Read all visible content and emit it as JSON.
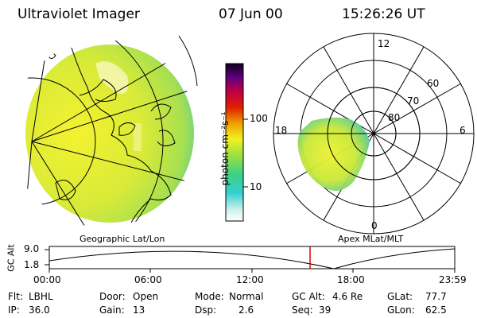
{
  "header": {
    "title": "Ultraviolet Imager",
    "date": "07 Jun 00",
    "time": "15:26:26 UT"
  },
  "colorbar": {
    "unit_label": "photon cm⁻²s⁻¹",
    "ticks": [
      "100",
      "10"
    ]
  },
  "polar": {
    "mlt_labels": [
      "12",
      "18",
      "6",
      "0"
    ],
    "lat_labels": [
      "60",
      "70",
      "80"
    ]
  },
  "panels": {
    "geo_label": "Geographic Lat/Lon",
    "apex_label": "Apex MLat/MLT"
  },
  "gc_alt_plot": {
    "axis_label": "GC Alt",
    "y_ticks": [
      "9.0",
      "1.8"
    ],
    "x_ticks": [
      "00:00",
      "06:00",
      "12:00",
      "18:00",
      "23:59"
    ],
    "marker_time": "15:26"
  },
  "status": {
    "flt_label": "Flt:",
    "flt_value": "LBHL",
    "ip_label": "IP:",
    "ip_value": "36.0",
    "door_label": "Door:",
    "door_value": "Open",
    "gain_label": "Gain:",
    "gain_value": "13",
    "mode_label": "Mode:",
    "mode_value": "Normal",
    "dsp_label": "Dsp:",
    "dsp_value": "2.6",
    "gcalt_label": "GC Alt:",
    "gcalt_value": "4.6 Re",
    "seq_label": "Seq:",
    "seq_value": "39",
    "glat_label": "GLat:",
    "glat_value": "77.7",
    "glon_label": "GLon:",
    "glon_value": "62.5"
  },
  "colors": {
    "marker": "#e00000",
    "aurora_main": "#d8e830",
    "aurora_edge": "#40d0c0"
  }
}
